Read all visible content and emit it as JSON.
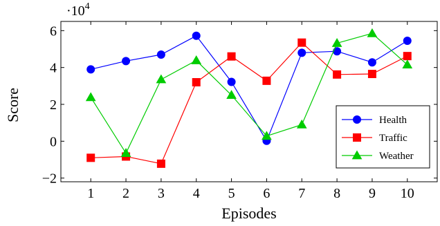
{
  "chart_data": {
    "type": "line",
    "title": "",
    "xlabel": "Episodes",
    "ylabel": "Score",
    "multiplier_base": "·10",
    "multiplier_exp": "4",
    "x": [
      1,
      2,
      3,
      4,
      5,
      6,
      7,
      8,
      9,
      10
    ],
    "x_ticks": [
      "1",
      "2",
      "3",
      "4",
      "5",
      "6",
      "7",
      "8",
      "9",
      "10"
    ],
    "y_ticks": [
      -2,
      0,
      2,
      4,
      6
    ],
    "y_tick_labels": [
      "−2",
      "0",
      "2",
      "4",
      "6"
    ],
    "xlim": [
      0.15,
      10.85
    ],
    "ylim": [
      -2.2,
      6.5
    ],
    "grid": false,
    "legend_position": "bottom-right",
    "series": [
      {
        "name": "Health",
        "color": "#0000ff",
        "marker": "circle",
        "values": [
          3.9,
          4.35,
          4.7,
          5.72,
          3.22,
          0.02,
          4.8,
          4.88,
          4.28,
          5.45
        ]
      },
      {
        "name": "Traffic",
        "color": "#ff0000",
        "marker": "square",
        "values": [
          -0.9,
          -0.83,
          -1.22,
          3.2,
          4.6,
          3.28,
          5.35,
          3.62,
          3.65,
          4.62
        ]
      },
      {
        "name": "Weather",
        "color": "#00cc00",
        "marker": "triangle",
        "values": [
          2.38,
          -0.65,
          3.35,
          4.38,
          2.5,
          0.28,
          0.9,
          5.32,
          5.85,
          4.15
        ]
      }
    ]
  }
}
